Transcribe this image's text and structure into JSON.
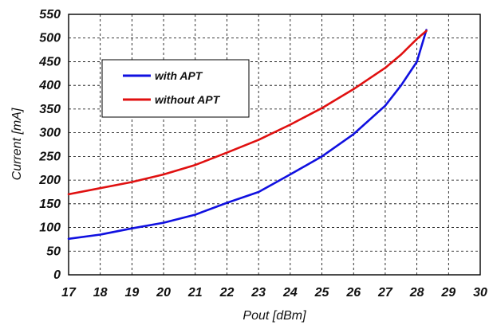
{
  "chart_data": {
    "type": "line",
    "title": "",
    "xlabel": "Pout [dBm]",
    "ylabel": "Current [mA]",
    "xlim": [
      17,
      30
    ],
    "ylim": [
      0,
      550
    ],
    "xticks": [
      17,
      18,
      19,
      20,
      21,
      22,
      23,
      24,
      25,
      26,
      27,
      28,
      29,
      30
    ],
    "yticks": [
      0,
      50,
      100,
      150,
      200,
      250,
      300,
      350,
      400,
      450,
      500,
      550
    ],
    "grid": true,
    "legend_position": "upper-left",
    "series": [
      {
        "name": "with APT",
        "color": "#1010e0",
        "x": [
          17,
          18,
          19,
          20,
          21,
          22,
          23,
          24,
          25,
          26,
          27,
          27.5,
          28,
          28.3
        ],
        "y": [
          76,
          85,
          98,
          110,
          127,
          152,
          175,
          212,
          250,
          297,
          357,
          400,
          450,
          517
        ]
      },
      {
        "name": "without APT",
        "color": "#e01010",
        "x": [
          17,
          18,
          19,
          20,
          21,
          22,
          23,
          24,
          25,
          26,
          27,
          27.5,
          28,
          28.3
        ],
        "y": [
          170,
          183,
          196,
          212,
          232,
          258,
          285,
          317,
          352,
          392,
          437,
          465,
          498,
          515
        ]
      }
    ]
  }
}
